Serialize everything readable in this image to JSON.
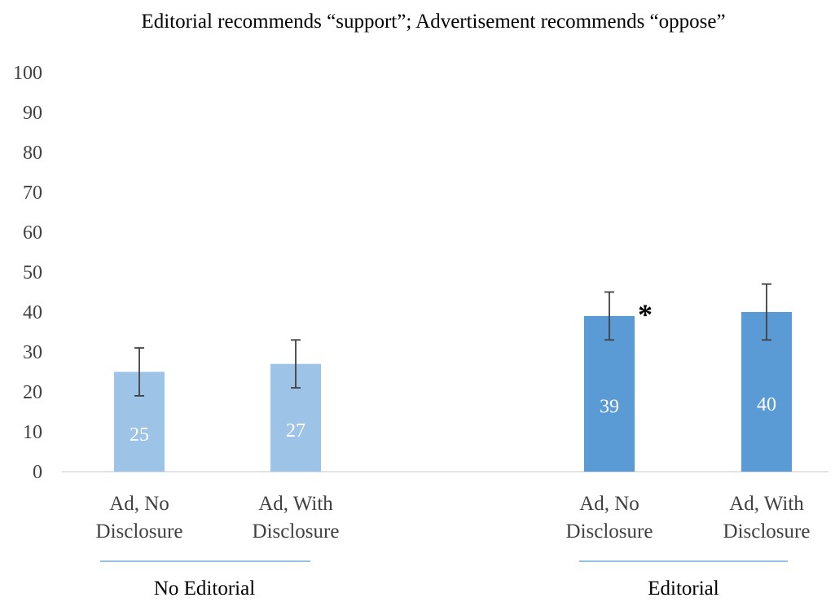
{
  "chart_data": {
    "type": "bar",
    "title": "Editorial recommends “support”; Advertisement recommends “oppose”",
    "ylim": [
      0,
      100
    ],
    "yticks": [
      0,
      10,
      20,
      30,
      40,
      50,
      60,
      70,
      80,
      90,
      100
    ],
    "grid": false,
    "legend": "none",
    "groups": [
      {
        "label": "No Editorial",
        "color": "#9dc3e6"
      },
      {
        "label": "Editorial",
        "color": "#5b9bd5"
      }
    ],
    "bars": [
      {
        "group": 0,
        "category": [
          "Ad, No",
          "Disclosure"
        ],
        "value": 25,
        "error_low": 19,
        "error_high": 31,
        "data_label": "25",
        "marker": ""
      },
      {
        "group": 0,
        "category": [
          "Ad, With",
          "Disclosure"
        ],
        "value": 27,
        "error_low": 21,
        "error_high": 33,
        "data_label": "27",
        "marker": ""
      },
      {
        "group": 1,
        "category": [
          "Ad, No",
          "Disclosure"
        ],
        "value": 39,
        "error_low": 33,
        "error_high": 45,
        "data_label": "39",
        "marker": "*"
      },
      {
        "group": 1,
        "category": [
          "Ad, With",
          "Disclosure"
        ],
        "value": 40,
        "error_low": 33,
        "error_high": 47,
        "data_label": "40",
        "marker": ""
      }
    ],
    "colors": {
      "axis": "#d9d9d9",
      "error_bar": "#404040",
      "group_underline": "#5b9bd5"
    }
  }
}
